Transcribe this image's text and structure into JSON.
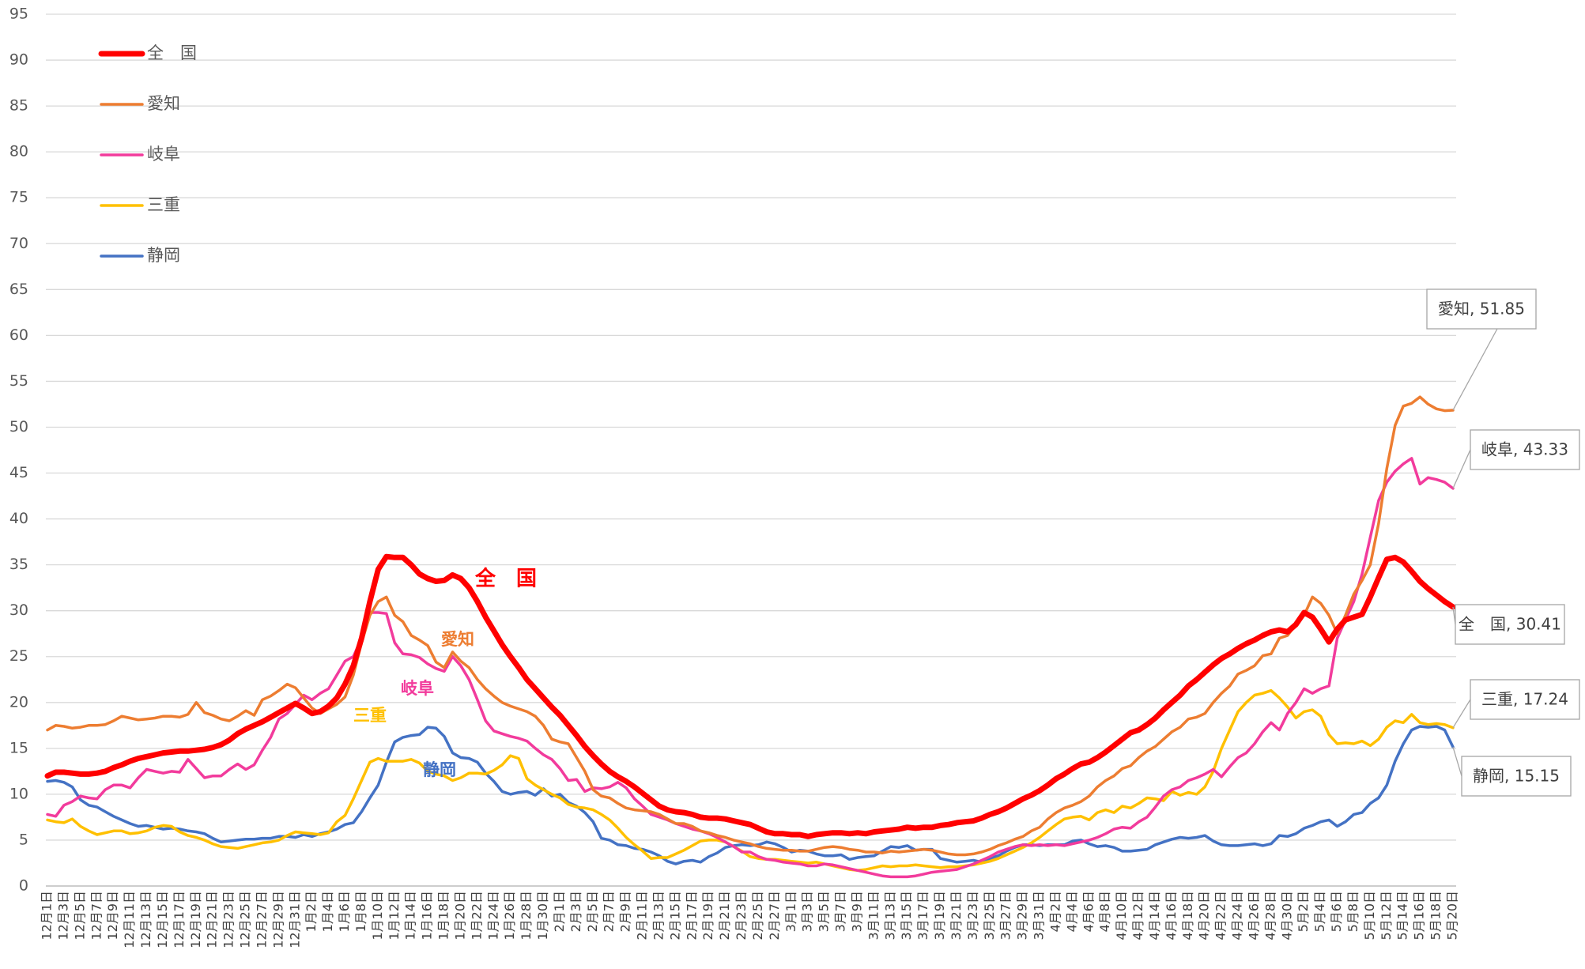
{
  "chart_data": {
    "type": "line",
    "categories": [
      "12月1日",
      null,
      "12月3日",
      null,
      "12月5日",
      null,
      "12月7日",
      null,
      "12月9日",
      null,
      "12月11日",
      null,
      "12月13日",
      null,
      "12月15日",
      null,
      "12月17日",
      null,
      "12月19日",
      null,
      "12月21日",
      null,
      "12月23日",
      null,
      "12月25日",
      null,
      "12月27日",
      null,
      "12月29日",
      null,
      "12月31日",
      null,
      "1月2日",
      null,
      "1月4日",
      null,
      "1月6日",
      null,
      "1月8日",
      null,
      "1月10日",
      null,
      "1月12日",
      null,
      "1月14日",
      null,
      "1月16日",
      null,
      "1月18日",
      null,
      "1月20日",
      null,
      "1月22日",
      null,
      "1月24日",
      null,
      "1月26日",
      null,
      "1月28日",
      null,
      "1月30日",
      null,
      "2月1日",
      null,
      "2月3日",
      null,
      "2月5日",
      null,
      "2月7日",
      null,
      "2月9日",
      null,
      "2月11日",
      null,
      "2月13日",
      null,
      "2月15日",
      null,
      "2月17日",
      null,
      "2月19日",
      null,
      "2月21日",
      null,
      "2月23日",
      null,
      "2月25日",
      null,
      "2月27日",
      null,
      "3月1日",
      null,
      "3月3日",
      null,
      "3月5日",
      null,
      "3月7日",
      null,
      "3月9日",
      null,
      "3月11日",
      null,
      "3月13日",
      null,
      "3月15日",
      null,
      "3月17日",
      null,
      "3月19日",
      null,
      "3月21日",
      null,
      "3月23日",
      null,
      "3月25日",
      null,
      "3月27日",
      null,
      "3月29日",
      null,
      "3月31日",
      null,
      "4月2日",
      null,
      "4月4日",
      null,
      "4月6日",
      null,
      "4月8日",
      null,
      "4月10日",
      null,
      "4月12日",
      null,
      "4月14日",
      null,
      "4月16日",
      null,
      "4月18日",
      null,
      "4月20日",
      null,
      "4月22日",
      null,
      "4月24日",
      null,
      "4月26日",
      null,
      "4月28日",
      null,
      "4月30日",
      null,
      "5月2日",
      null,
      "5月4日",
      null,
      "5月6日",
      null,
      "5月8日",
      null,
      "5月10日",
      null,
      "5月12日",
      null,
      "5月14日",
      null,
      "5月16日",
      null,
      "5月18日",
      null,
      "5月20日"
    ],
    "series": [
      {
        "name": "全　国",
        "color": "#ff0000",
        "width": 7,
        "end_label": "全　国, 30.41",
        "values": [
          12.0,
          12.4,
          12.4,
          12.3,
          12.2,
          12.2,
          12.3,
          12.5,
          12.9,
          13.2,
          13.6,
          13.9,
          14.1,
          14.3,
          14.5,
          14.6,
          14.7,
          14.7,
          14.8,
          14.9,
          15.1,
          15.4,
          15.9,
          16.6,
          17.1,
          17.5,
          17.9,
          18.4,
          18.9,
          19.4,
          19.9,
          19.4,
          18.8,
          19.0,
          19.6,
          20.5,
          22.0,
          24.0,
          27.0,
          31.0,
          34.5,
          35.9,
          35.8,
          35.8,
          35.0,
          34.0,
          33.5,
          33.2,
          33.3,
          33.9,
          33.5,
          32.5,
          31.0,
          29.3,
          27.8,
          26.3,
          25.0,
          23.8,
          22.5,
          21.5,
          20.5,
          19.5,
          18.6,
          17.5,
          16.4,
          15.2,
          14.2,
          13.3,
          12.5,
          11.9,
          11.4,
          10.8,
          10.1,
          9.4,
          8.7,
          8.3,
          8.1,
          8.0,
          7.8,
          7.5,
          7.4,
          7.4,
          7.3,
          7.1,
          6.9,
          6.7,
          6.3,
          5.9,
          5.7,
          5.7,
          5.6,
          5.6,
          5.4,
          5.6,
          5.7,
          5.8,
          5.8,
          5.7,
          5.8,
          5.7,
          5.9,
          6.0,
          6.1,
          6.2,
          6.4,
          6.3,
          6.4,
          6.4,
          6.6,
          6.7,
          6.9,
          7.0,
          7.1,
          7.4,
          7.8,
          8.1,
          8.5,
          9.0,
          9.5,
          9.9,
          10.4,
          11.0,
          11.7,
          12.2,
          12.8,
          13.3,
          13.5,
          14.0,
          14.6,
          15.3,
          16.0,
          16.7,
          17.0,
          17.6,
          18.3,
          19.2,
          20.0,
          20.8,
          21.8,
          22.5,
          23.3,
          24.1,
          24.8,
          25.3,
          25.9,
          26.4,
          26.8,
          27.3,
          27.7,
          27.9,
          27.7,
          28.5,
          29.8,
          29.3,
          28.0,
          26.6,
          28.0,
          29.0,
          29.3,
          29.6,
          31.5,
          33.6,
          35.6,
          35.8,
          35.3,
          34.3,
          33.2,
          32.4,
          31.7,
          31.0,
          30.41
        ]
      },
      {
        "name": "愛知",
        "color": "#ed7d31",
        "width": 3.5,
        "end_label": "愛知, 51.85",
        "values": [
          17.0,
          17.5,
          17.4,
          17.2,
          17.3,
          17.5,
          17.5,
          17.6,
          18.0,
          18.5,
          18.3,
          18.1,
          18.2,
          18.3,
          18.5,
          18.5,
          18.4,
          18.7,
          20.0,
          18.9,
          18.6,
          18.2,
          18.0,
          18.5,
          19.1,
          18.6,
          20.3,
          20.7,
          21.3,
          22.0,
          21.6,
          20.5,
          19.4,
          18.8,
          19.3,
          19.8,
          20.6,
          23.0,
          26.5,
          29.5,
          31.0,
          31.5,
          29.5,
          28.8,
          27.3,
          26.8,
          26.2,
          24.4,
          23.8,
          25.5,
          24.5,
          23.8,
          22.5,
          21.5,
          20.7,
          20.0,
          19.6,
          19.3,
          19.0,
          18.5,
          17.5,
          16.0,
          15.7,
          15.5,
          14.0,
          12.5,
          10.5,
          9.8,
          9.6,
          9.0,
          8.5,
          8.3,
          8.2,
          8.1,
          7.8,
          7.3,
          6.8,
          6.8,
          6.5,
          6.0,
          5.8,
          5.5,
          5.3,
          5.0,
          4.8,
          4.6,
          4.3,
          4.1,
          4.0,
          3.9,
          3.9,
          3.8,
          3.8,
          4.0,
          4.2,
          4.3,
          4.2,
          4.0,
          3.9,
          3.7,
          3.7,
          3.6,
          3.8,
          3.7,
          3.8,
          3.9,
          4.0,
          3.9,
          3.7,
          3.5,
          3.4,
          3.4,
          3.5,
          3.7,
          4.0,
          4.4,
          4.7,
          5.1,
          5.4,
          6.0,
          6.4,
          7.3,
          8.0,
          8.5,
          8.8,
          9.2,
          9.8,
          10.8,
          11.5,
          12.0,
          12.8,
          13.1,
          14.0,
          14.7,
          15.2,
          16.0,
          16.8,
          17.3,
          18.2,
          18.4,
          18.8,
          20.0,
          21.0,
          21.8,
          23.1,
          23.5,
          24.0,
          25.1,
          25.3,
          27.0,
          27.3,
          28.5,
          29.5,
          31.5,
          30.8,
          29.5,
          27.5,
          29.5,
          31.8,
          33.3,
          35.0,
          39.5,
          45.5,
          50.2,
          52.3,
          52.6,
          53.3,
          52.5,
          52.0,
          51.8,
          51.85
        ]
      },
      {
        "name": "岐阜",
        "color": "#f23b9c",
        "width": 3.5,
        "end_label": "岐阜, 43.33",
        "values": [
          7.8,
          7.6,
          8.8,
          9.2,
          9.8,
          9.6,
          9.5,
          10.5,
          11.0,
          11.0,
          10.7,
          11.8,
          12.7,
          12.5,
          12.3,
          12.5,
          12.4,
          13.8,
          12.8,
          11.8,
          12.0,
          12.0,
          12.7,
          13.3,
          12.7,
          13.2,
          14.8,
          16.2,
          18.2,
          18.8,
          19.8,
          20.8,
          20.3,
          21.0,
          21.5,
          23.0,
          24.5,
          25.0,
          27.0,
          29.8,
          29.8,
          29.7,
          26.5,
          25.3,
          25.2,
          24.9,
          24.2,
          23.7,
          23.4,
          25.0,
          24.0,
          22.5,
          20.3,
          18.0,
          16.9,
          16.6,
          16.3,
          16.1,
          15.8,
          15.0,
          14.3,
          13.8,
          12.8,
          11.5,
          11.6,
          10.3,
          10.7,
          10.6,
          10.8,
          11.3,
          10.7,
          9.5,
          8.7,
          7.8,
          7.5,
          7.2,
          6.8,
          6.5,
          6.2,
          6.0,
          5.7,
          5.3,
          4.8,
          4.3,
          3.7,
          3.7,
          3.2,
          2.9,
          2.8,
          2.6,
          2.5,
          2.4,
          2.2,
          2.2,
          2.4,
          2.3,
          2.1,
          1.9,
          1.7,
          1.5,
          1.3,
          1.1,
          1.0,
          1.0,
          1.0,
          1.1,
          1.3,
          1.5,
          1.6,
          1.7,
          1.8,
          2.1,
          2.4,
          2.8,
          3.2,
          3.7,
          4.0,
          4.3,
          4.5,
          4.4,
          4.5,
          4.4,
          4.5,
          4.4,
          4.6,
          4.8,
          5.0,
          5.3,
          5.7,
          6.2,
          6.4,
          6.3,
          7.0,
          7.5,
          8.6,
          9.8,
          10.5,
          10.8,
          11.5,
          11.8,
          12.2,
          12.7,
          11.9,
          13.0,
          14.0,
          14.5,
          15.5,
          16.8,
          17.8,
          17.0,
          18.8,
          20.0,
          21.5,
          21.0,
          21.5,
          21.8,
          27.0,
          29.0,
          31.0,
          34.0,
          38.0,
          42.0,
          44.0,
          45.2,
          46.0,
          46.6,
          43.8,
          44.5,
          44.3,
          44.0,
          43.33
        ]
      },
      {
        "name": "三重",
        "color": "#ffc000",
        "width": 3.5,
        "end_label": "三重, 17.24",
        "values": [
          7.2,
          7.0,
          6.9,
          7.3,
          6.5,
          6.0,
          5.6,
          5.8,
          6.0,
          6.0,
          5.7,
          5.8,
          6.0,
          6.4,
          6.6,
          6.5,
          5.9,
          5.5,
          5.3,
          5.0,
          4.6,
          4.3,
          4.2,
          4.1,
          4.3,
          4.5,
          4.7,
          4.8,
          5.0,
          5.5,
          5.9,
          5.8,
          5.7,
          5.6,
          5.8,
          7.0,
          7.7,
          9.5,
          11.5,
          13.5,
          13.9,
          13.6,
          13.6,
          13.6,
          13.8,
          13.4,
          12.5,
          12.2,
          12.0,
          11.5,
          11.8,
          12.3,
          12.3,
          12.2,
          12.6,
          13.2,
          14.2,
          13.9,
          11.7,
          11.0,
          10.5,
          10.0,
          9.6,
          8.9,
          8.6,
          8.5,
          8.3,
          7.8,
          7.2,
          6.3,
          5.3,
          4.5,
          3.8,
          3.0,
          3.1,
          3.1,
          3.5,
          3.9,
          4.4,
          4.9,
          5.0,
          5.0,
          4.8,
          4.3,
          3.8,
          3.2,
          3.0,
          2.9,
          2.9,
          2.8,
          2.7,
          2.6,
          2.5,
          2.6,
          2.4,
          2.2,
          2.0,
          1.8,
          1.7,
          1.8,
          2.0,
          2.2,
          2.1,
          2.2,
          2.2,
          2.3,
          2.2,
          2.1,
          2.0,
          2.1,
          2.1,
          2.2,
          2.3,
          2.5,
          2.7,
          3.0,
          3.4,
          3.8,
          4.2,
          4.7,
          5.3,
          6.0,
          6.7,
          7.3,
          7.5,
          7.6,
          7.2,
          8.0,
          8.3,
          8.0,
          8.7,
          8.5,
          9.0,
          9.6,
          9.5,
          9.3,
          10.3,
          9.9,
          10.2,
          10.0,
          10.8,
          12.5,
          15.0,
          17.0,
          19.0,
          20.0,
          20.8,
          21.0,
          21.3,
          20.5,
          19.5,
          18.3,
          19.0,
          19.2,
          18.5,
          16.5,
          15.5,
          15.6,
          15.5,
          15.8,
          15.3,
          16.0,
          17.3,
          18.0,
          17.8,
          18.7,
          17.8,
          17.6,
          17.7,
          17.6,
          17.24
        ]
      },
      {
        "name": "静岡",
        "color": "#4472c4",
        "width": 3.5,
        "end_label": "静岡, 15.15",
        "values": [
          11.4,
          11.5,
          11.3,
          10.8,
          9.4,
          8.8,
          8.6,
          8.1,
          7.6,
          7.2,
          6.8,
          6.5,
          6.6,
          6.4,
          6.2,
          6.3,
          6.2,
          6.0,
          5.9,
          5.7,
          5.2,
          4.8,
          4.9,
          5.0,
          5.1,
          5.1,
          5.2,
          5.2,
          5.4,
          5.4,
          5.3,
          5.6,
          5.4,
          5.7,
          5.9,
          6.2,
          6.7,
          6.9,
          8.1,
          9.6,
          11.0,
          13.5,
          15.7,
          16.2,
          16.4,
          16.5,
          17.3,
          17.2,
          16.3,
          14.5,
          14.0,
          13.9,
          13.5,
          12.3,
          11.4,
          10.3,
          10.0,
          10.2,
          10.3,
          9.9,
          10.6,
          9.8,
          10.0,
          9.1,
          8.7,
          8.0,
          7.0,
          5.2,
          5.0,
          4.5,
          4.4,
          4.1,
          4.0,
          3.7,
          3.3,
          2.7,
          2.4,
          2.7,
          2.8,
          2.6,
          3.2,
          3.6,
          4.2,
          4.4,
          4.5,
          4.4,
          4.5,
          4.8,
          4.6,
          4.2,
          3.7,
          3.9,
          3.8,
          3.5,
          3.3,
          3.3,
          3.4,
          2.9,
          3.1,
          3.2,
          3.3,
          3.8,
          4.3,
          4.2,
          4.4,
          3.9,
          4.0,
          4.0,
          3.0,
          2.8,
          2.6,
          2.7,
          2.8,
          2.6,
          3.0,
          3.3,
          3.8,
          4.2,
          4.5,
          4.5,
          4.4,
          4.5,
          4.5,
          4.5,
          4.9,
          5.0,
          4.6,
          4.3,
          4.4,
          4.2,
          3.8,
          3.8,
          3.9,
          4.0,
          4.5,
          4.8,
          5.1,
          5.3,
          5.2,
          5.3,
          5.5,
          4.9,
          4.5,
          4.4,
          4.4,
          4.5,
          4.6,
          4.4,
          4.6,
          5.5,
          5.4,
          5.7,
          6.3,
          6.6,
          7.0,
          7.2,
          6.5,
          7.0,
          7.8,
          8.0,
          9.0,
          9.6,
          11.0,
          13.6,
          15.5,
          17.0,
          17.4,
          17.3,
          17.4,
          17.0,
          15.15
        ]
      }
    ],
    "ylim": [
      0,
      95
    ],
    "yticks": [
      0,
      5,
      10,
      15,
      20,
      25,
      30,
      35,
      40,
      45,
      50,
      55,
      60,
      65,
      70,
      75,
      80,
      85,
      90,
      95
    ],
    "grid": true,
    "legend": "top-left"
  }
}
